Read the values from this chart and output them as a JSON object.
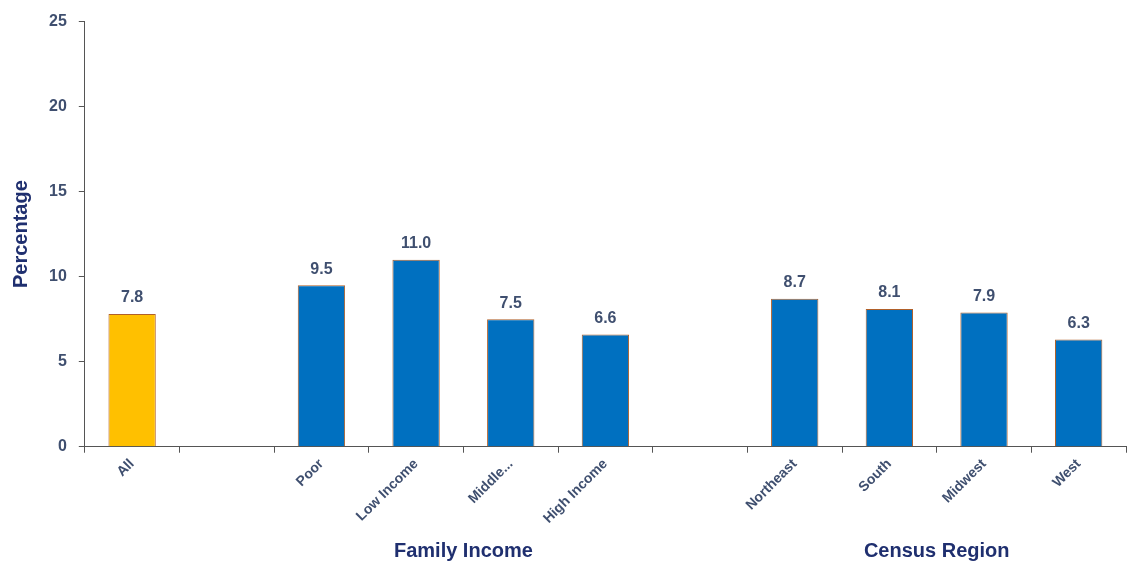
{
  "chart_data": {
    "type": "bar",
    "ylabel": "Percentage",
    "categories": [
      "All",
      null,
      "Poor",
      "Low Income",
      "Middle...",
      "High Income",
      null,
      "Northeast",
      "South",
      "Midwest",
      "West"
    ],
    "values": [
      7.8,
      null,
      9.5,
      11.0,
      7.5,
      6.6,
      null,
      8.7,
      8.1,
      7.9,
      6.3
    ],
    "colors": [
      "#ffc000",
      null,
      "#0070c0",
      "#0070c0",
      "#0070c0",
      "#0070c0",
      null,
      "#0070c0",
      "#0070c0",
      "#0070c0",
      "#0070c0"
    ],
    "value_labels": [
      "7.8",
      null,
      "9.5",
      "11.0",
      "7.5",
      "6.6",
      null,
      "8.7",
      "8.1",
      "7.9",
      "6.3"
    ],
    "ylim": [
      0,
      25
    ],
    "yticks": [
      0,
      5,
      10,
      15,
      20,
      25
    ],
    "grid": false,
    "legend": false,
    "annotations": [
      "Family Income",
      "Census Region"
    ]
  }
}
